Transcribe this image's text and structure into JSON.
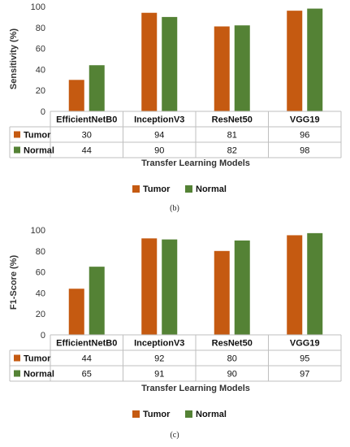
{
  "colors": {
    "tumor": "#C55A11",
    "normal": "#548235"
  },
  "chart_data": [
    {
      "type": "bar",
      "caption": "(b)",
      "categories": [
        "EfficientNetB0",
        "InceptionV3",
        "ResNet50",
        "VGG19"
      ],
      "series": [
        {
          "name": "Tumor",
          "values": [
            30,
            94,
            81,
            96
          ]
        },
        {
          "name": "Normal",
          "values": [
            44,
            90,
            82,
            98
          ]
        }
      ],
      "ylabel": "Sensitivity (%)",
      "xlabel": "Transfer Learning Models",
      "ylim": [
        0,
        100
      ],
      "yticks": [
        0,
        20,
        40,
        60,
        80,
        100
      ],
      "grid": false,
      "legend": "bottom"
    },
    {
      "type": "bar",
      "caption": "(c)",
      "categories": [
        "EfficientNetB0",
        "InceptionV3",
        "ResNet50",
        "VGG19"
      ],
      "series": [
        {
          "name": "Tumor",
          "values": [
            44,
            92,
            80,
            95
          ]
        },
        {
          "name": "Normal",
          "values": [
            65,
            91,
            90,
            97
          ]
        }
      ],
      "ylabel": "F1-Score (%)",
      "xlabel": "Transfer Learning Models",
      "ylim": [
        0,
        100
      ],
      "yticks": [
        0,
        20,
        40,
        60,
        80,
        100
      ],
      "grid": false,
      "legend": "bottom"
    }
  ]
}
